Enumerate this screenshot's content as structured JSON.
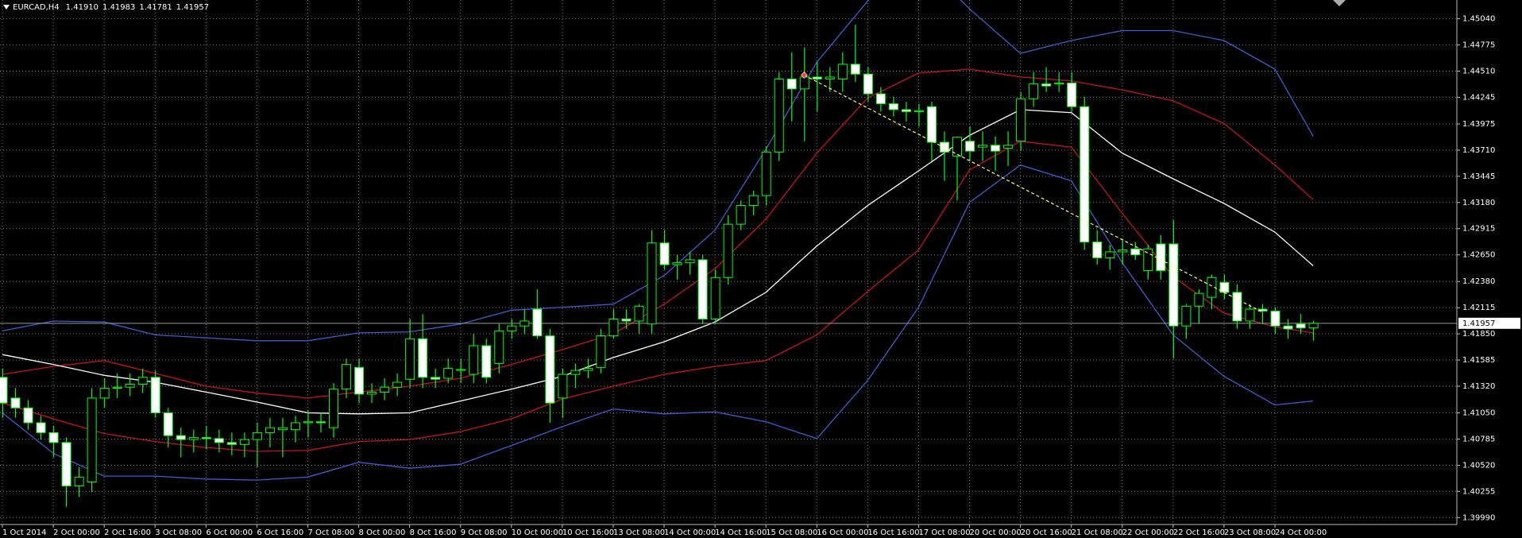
{
  "chart_data": {
    "type": "candlestick",
    "symbol": "EURCAD,H4",
    "header_ohlc": [
      "1.41910",
      "1.41983",
      "1.41781",
      "1.41957"
    ],
    "categories": [
      "1 Oct 2014",
      null,
      null,
      null,
      "2 Oct 00:00",
      null,
      null,
      null,
      "2 Oct 16:00",
      null,
      null,
      null,
      "3 Oct 08:00",
      null,
      null,
      null,
      "6 Oct 00:00",
      null,
      null,
      null,
      "6 Oct 16:00",
      null,
      null,
      null,
      "7 Oct 08:00",
      null,
      null,
      null,
      "8 Oct 00:00",
      null,
      null,
      null,
      "8 Oct 16:00",
      null,
      null,
      null,
      "9 Oct 08:00",
      null,
      null,
      null,
      "10 Oct 00:00",
      null,
      null,
      null,
      "10 Oct 16:00",
      null,
      null,
      null,
      "13 Oct 08:00",
      null,
      null,
      null,
      "14 Oct 00:00",
      null,
      null,
      null,
      "14 Oct 16:00",
      null,
      null,
      null,
      "15 Oct 08:00",
      null,
      null,
      null,
      "16 Oct 00:00",
      null,
      null,
      null,
      "16 Oct 16:00",
      null,
      null,
      null,
      "17 Oct 08:00",
      null,
      null,
      null,
      "20 Oct 00:00",
      null,
      null,
      null,
      "20 Oct 16:00",
      null,
      null,
      null,
      "21 Oct 08:00",
      null,
      null,
      null,
      "22 Oct 00:00",
      null,
      null,
      null,
      "22 Oct 16:00",
      null,
      null,
      null,
      "23 Oct 08:00",
      null,
      null,
      null,
      "24 Oct 00:00",
      null,
      null,
      null
    ],
    "open": [
      1.4141,
      1.412,
      1.411,
      1.4095,
      1.4085,
      1.4075,
      1.4031,
      1.4035,
      1.412,
      1.413,
      1.4131,
      1.4134,
      1.4141,
      1.4105,
      1.4082,
      1.4078,
      1.408,
      1.4079,
      1.4075,
      1.4073,
      1.4078,
      1.4085,
      1.4088,
      1.4088,
      1.4095,
      1.4096,
      1.409,
      1.4129,
      1.4151,
      1.4124,
      1.4126,
      1.4131,
      1.4139,
      1.418,
      1.4141,
      1.414,
      1.4148,
      1.4144,
      1.4173,
      1.4155,
      1.4188,
      1.4193,
      1.421,
      1.4183,
      1.412,
      1.4144,
      1.4148,
      1.4151,
      1.4183,
      1.42,
      1.4198,
      1.4195,
      1.4277,
      1.4255,
      1.4257,
      1.426,
      1.42,
      1.4242,
      1.4296,
      1.4315,
      1.4325,
      1.4369,
      1.4443,
      1.4433,
      1.4445,
      1.4443,
      1.4443,
      1.4458,
      1.4448,
      1.4428,
      1.4418,
      1.4412,
      1.441,
      1.4415,
      1.4379,
      1.4365,
      1.438,
      1.4374,
      1.4376,
      1.4373,
      1.438,
      1.4423,
      1.4438,
      1.4438,
      1.4439,
      1.4415,
      1.4278,
      1.4262,
      1.4268,
      1.4271,
      1.4249,
      1.4276,
      1.4276,
      1.4193,
      1.4213,
      1.4222,
      1.4237,
      1.4227,
      1.4198,
      1.421,
      1.4208,
      1.4193,
      1.4195,
      1.4191
    ],
    "high": [
      1.415,
      1.413,
      1.4118,
      1.4102,
      1.4092,
      1.408,
      1.405,
      1.413,
      1.414,
      1.4145,
      1.4145,
      1.415,
      1.4148,
      1.411,
      1.409,
      1.4088,
      1.4092,
      1.4088,
      1.4085,
      1.4085,
      1.4095,
      1.41,
      1.41,
      1.4102,
      1.4108,
      1.4105,
      1.4135,
      1.416,
      1.416,
      1.4135,
      1.414,
      1.4145,
      1.42,
      1.4205,
      1.415,
      1.416,
      1.416,
      1.4185,
      1.418,
      1.4195,
      1.42,
      1.421,
      1.423,
      1.419,
      1.415,
      1.4155,
      1.416,
      1.419,
      1.421,
      1.421,
      1.4215,
      1.429,
      1.429,
      1.4265,
      1.4268,
      1.4265,
      1.425,
      1.4305,
      1.432,
      1.433,
      1.4375,
      1.445,
      1.447,
      1.4475,
      1.446,
      1.4455,
      1.447,
      1.4498,
      1.4455,
      1.4435,
      1.4425,
      1.442,
      1.4418,
      1.442,
      1.439,
      1.4385,
      1.4395,
      1.439,
      1.4385,
      1.439,
      1.443,
      1.445,
      1.4455,
      1.445,
      1.445,
      1.4425,
      1.429,
      1.4275,
      1.428,
      1.4278,
      1.4275,
      1.4285,
      1.43,
      1.4215,
      1.423,
      1.4245,
      1.4245,
      1.4235,
      1.4215,
      1.4215,
      1.4212,
      1.42,
      1.4205,
      1.41983
    ],
    "low": [
      1.41,
      1.41,
      1.4088,
      1.4078,
      1.406,
      1.401,
      1.402,
      1.4025,
      1.411,
      1.412,
      1.4122,
      1.4125,
      1.41,
      1.407,
      1.406,
      1.4065,
      1.4068,
      1.4065,
      1.4062,
      1.406,
      1.405,
      1.407,
      1.406,
      1.4075,
      1.408,
      1.4085,
      1.408,
      1.412,
      1.4115,
      1.4115,
      1.4118,
      1.4122,
      1.413,
      1.413,
      1.413,
      1.4135,
      1.4135,
      1.4135,
      1.4135,
      1.4145,
      1.418,
      1.4185,
      1.418,
      1.4095,
      1.41,
      1.413,
      1.414,
      1.4145,
      1.418,
      1.419,
      1.4185,
      1.4185,
      1.425,
      1.424,
      1.4245,
      1.4195,
      1.4195,
      1.4235,
      1.429,
      1.4305,
      1.4315,
      1.436,
      1.44,
      1.438,
      1.441,
      1.443,
      1.443,
      1.444,
      1.442,
      1.441,
      1.4405,
      1.44,
      1.4395,
      1.436,
      1.434,
      1.432,
      1.436,
      1.436,
      1.435,
      1.4355,
      1.437,
      1.4415,
      1.443,
      1.443,
      1.441,
      1.427,
      1.4255,
      1.425,
      1.4255,
      1.426,
      1.424,
      1.424,
      1.416,
      1.418,
      1.4195,
      1.421,
      1.422,
      1.419,
      1.419,
      1.4195,
      1.4185,
      1.418,
      1.4185,
      1.41781
    ],
    "close": [
      1.4115,
      1.411,
      1.4095,
      1.4085,
      1.4075,
      1.4031,
      1.404,
      1.412,
      1.413,
      1.4131,
      1.4134,
      1.4141,
      1.4105,
      1.4082,
      1.4078,
      1.408,
      1.4079,
      1.4075,
      1.4073,
      1.4078,
      1.4085,
      1.409,
      1.409,
      1.4095,
      1.4096,
      1.4095,
      1.4129,
      1.4154,
      1.4124,
      1.4126,
      1.4131,
      1.4136,
      1.418,
      1.4141,
      1.4139,
      1.415,
      1.4149,
      1.4173,
      1.4141,
      1.4188,
      1.4193,
      1.4198,
      1.4183,
      1.4115,
      1.4144,
      1.4148,
      1.415,
      1.4183,
      1.42,
      1.4198,
      1.4213,
      1.4277,
      1.4255,
      1.4257,
      1.426,
      1.42,
      1.4242,
      1.4296,
      1.4315,
      1.4325,
      1.4369,
      1.4443,
      1.4433,
      1.4445,
      1.4443,
      1.4445,
      1.4458,
      1.4448,
      1.4428,
      1.4418,
      1.4412,
      1.441,
      1.4411,
      1.4379,
      1.4369,
      1.4384,
      1.437,
      1.4376,
      1.437,
      1.4376,
      1.4423,
      1.4438,
      1.4436,
      1.4439,
      1.4415,
      1.4278,
      1.4262,
      1.4268,
      1.427,
      1.4265,
      1.4271,
      1.4249,
      1.4193,
      1.4213,
      1.4226,
      1.4242,
      1.4227,
      1.4198,
      1.421,
      1.4208,
      1.4193,
      1.419,
      1.4191,
      1.41957
    ],
    "up_color": "#000000",
    "down_color": "#ffffff",
    "candle_outline_color": "#00ff00",
    "indicators": {
      "x": [
        0,
        4,
        8,
        12,
        16,
        20,
        24,
        28,
        32,
        36,
        40,
        44,
        48,
        52,
        56,
        60,
        64,
        68,
        72,
        76,
        80,
        84,
        88,
        92,
        96,
        100,
        103
      ],
      "series": [
        {
          "color": "#3a5fcd",
          "values": [
            1.4188,
            1.4198,
            1.4197,
            1.4184,
            1.4181,
            1.4178,
            1.4178,
            1.4186,
            1.4187,
            1.4195,
            1.4209,
            1.4212,
            1.4215,
            1.4244,
            1.429,
            1.4372,
            1.446,
            1.4522,
            1.4565,
            1.4514,
            1.4469,
            1.4482,
            1.4492,
            1.4492,
            1.4482,
            1.4453,
            1.4385
          ]
        },
        {
          "color": "#c81414",
          "values": [
            1.4144,
            1.4152,
            1.4158,
            1.4145,
            1.4132,
            1.4125,
            1.412,
            1.4126,
            1.4132,
            1.414,
            1.4154,
            1.4169,
            1.4185,
            1.4215,
            1.4251,
            1.4301,
            1.4368,
            1.4424,
            1.4449,
            1.4453,
            1.4445,
            1.4441,
            1.4432,
            1.4421,
            1.4398,
            1.4356,
            1.4321
          ]
        },
        {
          "color": "#ffffff",
          "values": [
            1.4164,
            1.4154,
            1.4143,
            1.4136,
            1.4126,
            1.4116,
            1.4105,
            1.4104,
            1.4105,
            1.4117,
            1.4129,
            1.4142,
            1.4161,
            1.4177,
            1.4197,
            1.4227,
            1.4274,
            1.4315,
            1.435,
            1.4386,
            1.4412,
            1.4409,
            1.4368,
            1.4342,
            1.4317,
            1.4288,
            1.4254
          ]
        },
        {
          "color": "#c81414",
          "values": [
            1.4115,
            1.4099,
            1.4084,
            1.4076,
            1.407,
            1.4066,
            1.4067,
            1.4076,
            1.4078,
            1.4086,
            1.4099,
            1.4119,
            1.4132,
            1.4144,
            1.4152,
            1.4158,
            1.4184,
            1.4228,
            1.427,
            1.4351,
            1.438,
            1.4374,
            1.4307,
            1.4243,
            1.4206,
            1.4192,
            1.4186
          ]
        },
        {
          "color": "#3a5fcd",
          "values": [
            1.4105,
            1.4064,
            1.4041,
            1.4041,
            1.4038,
            1.4037,
            1.404,
            1.4055,
            1.4049,
            1.4053,
            1.4072,
            1.4091,
            1.4109,
            1.4104,
            1.4106,
            1.4096,
            1.4079,
            1.4138,
            1.4212,
            1.4318,
            1.4356,
            1.434,
            1.4257,
            1.4184,
            1.4142,
            1.4113,
            1.4117
          ]
        }
      ]
    },
    "trendline": {
      "color": "#ffff66",
      "x": [
        63,
        99
      ],
      "values": [
        1.4447,
        1.4207
      ]
    },
    "current_price": {
      "value": 1.41957,
      "label": "1.41957"
    },
    "ylim": [
      1.3992,
      1.4523
    ],
    "yticks": [
      {
        "value": 1.3999,
        "label": "1.39990"
      },
      {
        "value": 1.40255,
        "label": "1.40255"
      },
      {
        "value": 1.4052,
        "label": "1.40520"
      },
      {
        "value": 1.40785,
        "label": "1.40785"
      },
      {
        "value": 1.4105,
        "label": "1.41050"
      },
      {
        "value": 1.4132,
        "label": "1.41320"
      },
      {
        "value": 1.41585,
        "label": "1.41585"
      },
      {
        "value": 1.4185,
        "label": "1.41850"
      },
      {
        "value": 1.42115,
        "label": "1.42115"
      },
      {
        "value": 1.4238,
        "label": "1.42380"
      },
      {
        "value": 1.4265,
        "label": "1.42650"
      },
      {
        "value": 1.42915,
        "label": "1.42915"
      },
      {
        "value": 1.4318,
        "label": "1.43180"
      },
      {
        "value": 1.43445,
        "label": "1.43445"
      },
      {
        "value": 1.4371,
        "label": "1.43710"
      },
      {
        "value": 1.43975,
        "label": "1.43975"
      },
      {
        "value": 1.44245,
        "label": "1.44245"
      },
      {
        "value": 1.4451,
        "label": "1.44510"
      },
      {
        "value": 1.44775,
        "label": "1.44775"
      },
      {
        "value": 1.4504,
        "label": "1.45040"
      }
    ],
    "grid": true,
    "grid_color": "#7a7a7a"
  }
}
